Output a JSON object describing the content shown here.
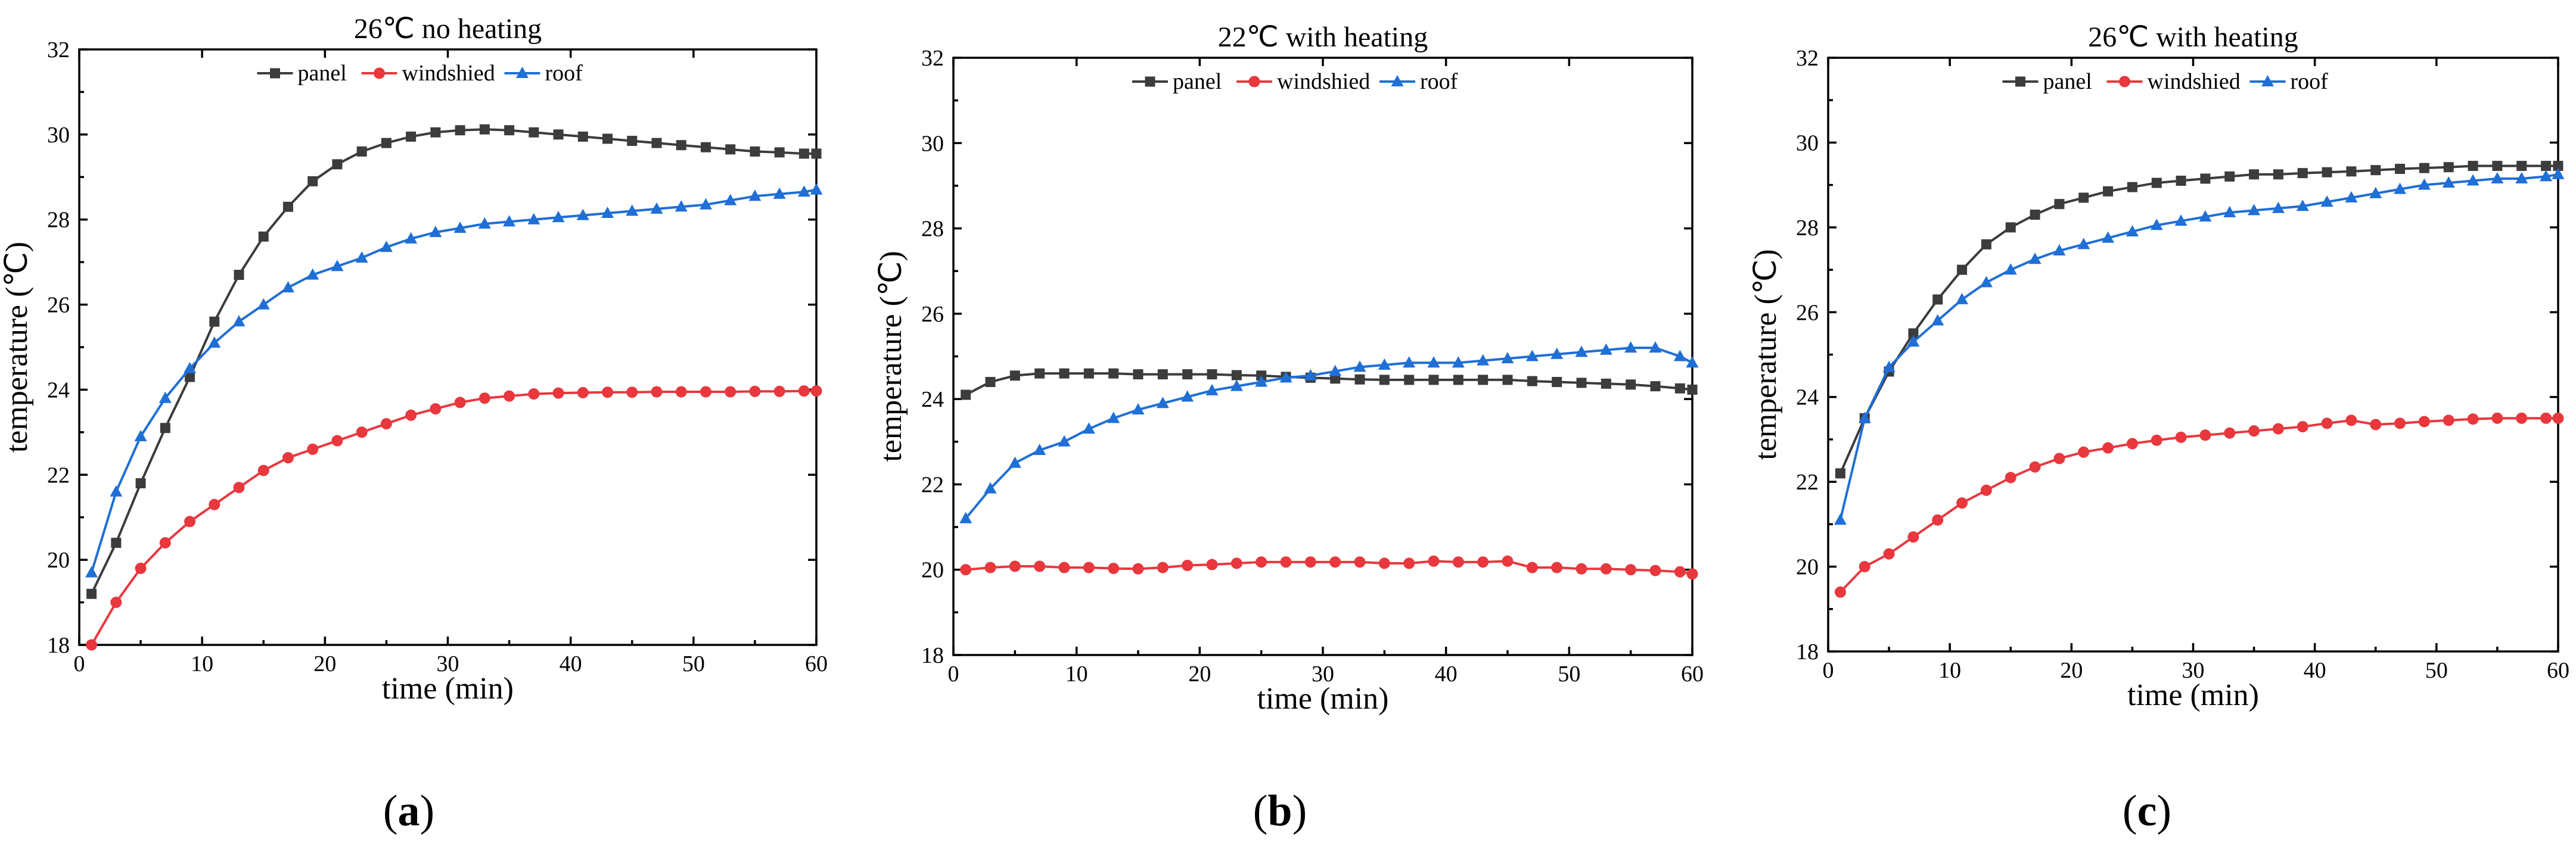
{
  "chart_data": [
    {
      "type": "line",
      "title": "26℃ no heating",
      "xlabel": "time (min)",
      "ylabel": "temperature (℃)",
      "xlim": [
        0,
        60
      ],
      "ylim": [
        18,
        32
      ],
      "xticks": [
        "0",
        "10",
        "20",
        "30",
        "40",
        "50",
        "60"
      ],
      "yticks": [
        "18",
        "20",
        "22",
        "24",
        "26",
        "28",
        "30",
        "32"
      ],
      "caption": "a",
      "series": [
        {
          "name": "panel",
          "color": "#3c3c3c",
          "marker": "square",
          "x": [
            1,
            3,
            5,
            7,
            9,
            11,
            13,
            15,
            17,
            19,
            21,
            23,
            25,
            27,
            29,
            31,
            33,
            35,
            37,
            39,
            41,
            43,
            45,
            47,
            49,
            51,
            53,
            55,
            57,
            59,
            60
          ],
          "y": [
            19.2,
            20.4,
            21.8,
            23.1,
            24.3,
            25.6,
            26.7,
            27.6,
            28.3,
            28.9,
            29.3,
            29.6,
            29.8,
            29.95,
            30.05,
            30.1,
            30.12,
            30.1,
            30.05,
            30.0,
            29.95,
            29.9,
            29.85,
            29.8,
            29.75,
            29.7,
            29.65,
            29.6,
            29.58,
            29.55,
            29.55
          ]
        },
        {
          "name": "windshied",
          "color": "#e8383d",
          "marker": "circle",
          "x": [
            1,
            3,
            5,
            7,
            9,
            11,
            13,
            15,
            17,
            19,
            21,
            23,
            25,
            27,
            29,
            31,
            33,
            35,
            37,
            39,
            41,
            43,
            45,
            47,
            49,
            51,
            53,
            55,
            57,
            59,
            60
          ],
          "y": [
            18.0,
            19.0,
            19.8,
            20.4,
            20.9,
            21.3,
            21.7,
            22.1,
            22.4,
            22.6,
            22.8,
            23.0,
            23.2,
            23.4,
            23.55,
            23.7,
            23.8,
            23.85,
            23.9,
            23.92,
            23.93,
            23.94,
            23.94,
            23.95,
            23.95,
            23.95,
            23.95,
            23.96,
            23.96,
            23.97,
            23.97
          ]
        },
        {
          "name": "roof",
          "color": "#1f6fd6",
          "marker": "triangle",
          "x": [
            1,
            3,
            5,
            7,
            9,
            11,
            13,
            15,
            17,
            19,
            21,
            23,
            25,
            27,
            29,
            31,
            33,
            35,
            37,
            39,
            41,
            43,
            45,
            47,
            49,
            51,
            53,
            55,
            57,
            59,
            60
          ],
          "y": [
            19.7,
            21.6,
            22.9,
            23.8,
            24.5,
            25.1,
            25.6,
            26.0,
            26.4,
            26.7,
            26.9,
            27.1,
            27.35,
            27.55,
            27.7,
            27.8,
            27.9,
            27.95,
            28.0,
            28.05,
            28.1,
            28.15,
            28.2,
            28.25,
            28.3,
            28.35,
            28.45,
            28.55,
            28.6,
            28.65,
            28.7
          ]
        }
      ]
    },
    {
      "type": "line",
      "title": "22℃ with heating",
      "xlabel": "time (min)",
      "ylabel": "temperature (℃)",
      "xlim": [
        0,
        60
      ],
      "ylim": [
        18,
        32
      ],
      "xticks": [
        "0",
        "10",
        "20",
        "30",
        "40",
        "50",
        "60"
      ],
      "yticks": [
        "18",
        "20",
        "22",
        "24",
        "26",
        "28",
        "30",
        "32"
      ],
      "caption": "b",
      "series": [
        {
          "name": "panel",
          "color": "#3c3c3c",
          "marker": "square",
          "x": [
            1,
            3,
            5,
            7,
            9,
            11,
            13,
            15,
            17,
            19,
            21,
            23,
            25,
            27,
            29,
            31,
            33,
            35,
            37,
            39,
            41,
            43,
            45,
            47,
            49,
            51,
            53,
            55,
            57,
            59,
            60
          ],
          "y": [
            24.1,
            24.4,
            24.55,
            24.6,
            24.6,
            24.6,
            24.6,
            24.58,
            24.58,
            24.58,
            24.58,
            24.56,
            24.55,
            24.52,
            24.5,
            24.48,
            24.46,
            24.45,
            24.45,
            24.45,
            24.45,
            24.45,
            24.45,
            24.42,
            24.4,
            24.38,
            24.36,
            24.34,
            24.3,
            24.25,
            24.22
          ]
        },
        {
          "name": "windshied",
          "color": "#e8383d",
          "marker": "circle",
          "x": [
            1,
            3,
            5,
            7,
            9,
            11,
            13,
            15,
            17,
            19,
            21,
            23,
            25,
            27,
            29,
            31,
            33,
            35,
            37,
            39,
            41,
            43,
            45,
            47,
            49,
            51,
            53,
            55,
            57,
            59,
            60
          ],
          "y": [
            20.0,
            20.05,
            20.08,
            20.08,
            20.05,
            20.05,
            20.03,
            20.02,
            20.05,
            20.1,
            20.12,
            20.15,
            20.18,
            20.18,
            20.18,
            20.18,
            20.18,
            20.15,
            20.15,
            20.2,
            20.18,
            20.18,
            20.2,
            20.05,
            20.05,
            20.02,
            20.02,
            20.0,
            19.98,
            19.95,
            19.9
          ]
        },
        {
          "name": "roof",
          "color": "#1f6fd6",
          "marker": "triangle",
          "x": [
            1,
            3,
            5,
            7,
            9,
            11,
            13,
            15,
            17,
            19,
            21,
            23,
            25,
            27,
            29,
            31,
            33,
            35,
            37,
            39,
            41,
            43,
            45,
            47,
            49,
            51,
            53,
            55,
            57,
            59,
            60
          ],
          "y": [
            21.2,
            21.9,
            22.5,
            22.8,
            23.0,
            23.3,
            23.55,
            23.75,
            23.9,
            24.05,
            24.2,
            24.3,
            24.4,
            24.5,
            24.55,
            24.65,
            24.75,
            24.8,
            24.85,
            24.85,
            24.85,
            24.9,
            24.95,
            25.0,
            25.05,
            25.1,
            25.15,
            25.2,
            25.2,
            25.0,
            24.85
          ]
        }
      ]
    },
    {
      "type": "line",
      "title": "26℃ with heating",
      "xlabel": "time (min)",
      "ylabel": "temperature (℃)",
      "xlim": [
        0,
        60
      ],
      "ylim": [
        18,
        32
      ],
      "xticks": [
        "0",
        "10",
        "20",
        "30",
        "40",
        "50",
        "60"
      ],
      "yticks": [
        "18",
        "20",
        "22",
        "24",
        "26",
        "28",
        "30",
        "32"
      ],
      "caption": "c",
      "series": [
        {
          "name": "panel",
          "color": "#3c3c3c",
          "marker": "square",
          "x": [
            1,
            3,
            5,
            7,
            9,
            11,
            13,
            15,
            17,
            19,
            21,
            23,
            25,
            27,
            29,
            31,
            33,
            35,
            37,
            39,
            41,
            43,
            45,
            47,
            49,
            51,
            53,
            55,
            57,
            59,
            60
          ],
          "y": [
            22.2,
            23.5,
            24.6,
            25.5,
            26.3,
            27.0,
            27.6,
            28.0,
            28.3,
            28.55,
            28.7,
            28.85,
            28.95,
            29.05,
            29.1,
            29.15,
            29.2,
            29.25,
            29.25,
            29.28,
            29.3,
            29.32,
            29.35,
            29.38,
            29.4,
            29.42,
            29.45,
            29.45,
            29.45,
            29.45,
            29.45
          ]
        },
        {
          "name": "windshied",
          "color": "#e8383d",
          "marker": "circle",
          "x": [
            1,
            3,
            5,
            7,
            9,
            11,
            13,
            15,
            17,
            19,
            21,
            23,
            25,
            27,
            29,
            31,
            33,
            35,
            37,
            39,
            41,
            43,
            45,
            47,
            49,
            51,
            53,
            55,
            57,
            59,
            60
          ],
          "y": [
            19.4,
            20.0,
            20.3,
            20.7,
            21.1,
            21.5,
            21.8,
            22.1,
            22.35,
            22.55,
            22.7,
            22.8,
            22.9,
            22.98,
            23.05,
            23.1,
            23.15,
            23.2,
            23.25,
            23.3,
            23.38,
            23.45,
            23.35,
            23.38,
            23.42,
            23.45,
            23.48,
            23.5,
            23.5,
            23.5,
            23.5
          ]
        },
        {
          "name": "roof",
          "color": "#1f6fd6",
          "marker": "triangle",
          "x": [
            1,
            3,
            5,
            7,
            9,
            11,
            13,
            15,
            17,
            19,
            21,
            23,
            25,
            27,
            29,
            31,
            33,
            35,
            37,
            39,
            41,
            43,
            45,
            47,
            49,
            51,
            53,
            55,
            57,
            59,
            60
          ],
          "y": [
            21.1,
            23.5,
            24.7,
            25.3,
            25.8,
            26.3,
            26.7,
            27.0,
            27.25,
            27.45,
            27.6,
            27.75,
            27.9,
            28.05,
            28.15,
            28.25,
            28.35,
            28.4,
            28.45,
            28.5,
            28.6,
            28.7,
            28.8,
            28.9,
            29.0,
            29.05,
            29.1,
            29.15,
            29.15,
            29.2,
            29.25
          ]
        }
      ]
    }
  ]
}
